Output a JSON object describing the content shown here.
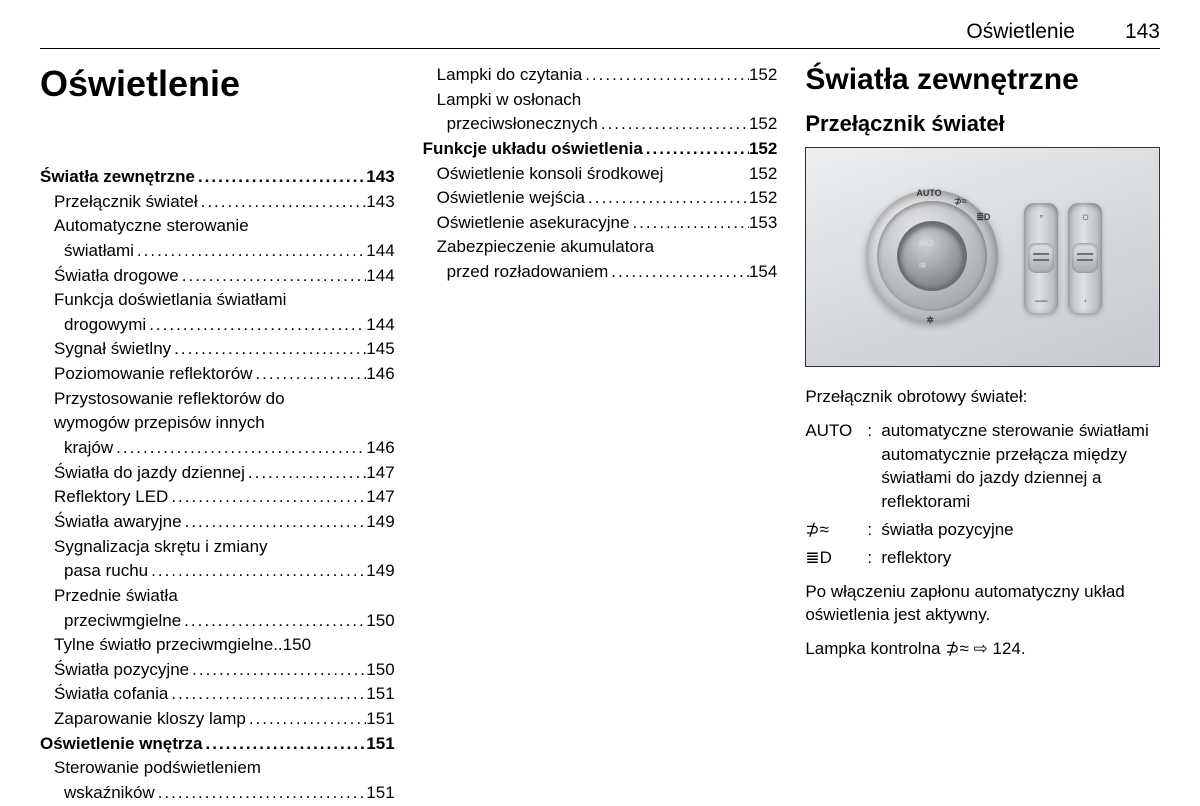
{
  "header": {
    "title": "Oświetlenie",
    "page": "143"
  },
  "col1": {
    "chapter": "Oświetlenie",
    "toc": [
      {
        "type": "section",
        "label": "Światła zewnętrzne",
        "page": "143"
      },
      {
        "type": "item",
        "label": "Przełącznik świateł",
        "page": "143"
      },
      {
        "type": "item-multi",
        "lines": [
          "Automatyczne sterowanie",
          "światłami"
        ],
        "page": "144"
      },
      {
        "type": "item",
        "label": "Światła drogowe",
        "page": "144"
      },
      {
        "type": "item-multi",
        "lines": [
          "Funkcja doświetlania światłami",
          "drogowymi"
        ],
        "page": "144"
      },
      {
        "type": "item",
        "label": "Sygnał świetlny",
        "page": "145"
      },
      {
        "type": "item",
        "label": "Poziomowanie reflektorów",
        "page": "146"
      },
      {
        "type": "item-multi",
        "lines": [
          "Przystosowanie reflektorów do",
          "wymogów przepisów innych",
          "krajów"
        ],
        "page": "146"
      },
      {
        "type": "item",
        "label": "Światła do jazdy dziennej",
        "page": "147"
      },
      {
        "type": "item",
        "label": "Reflektory LED",
        "page": "147"
      },
      {
        "type": "item",
        "label": "Światła awaryjne",
        "page": "149"
      },
      {
        "type": "item-multi",
        "lines": [
          "Sygnalizacja skrętu i zmiany",
          "pasa ruchu"
        ],
        "page": "149"
      },
      {
        "type": "item-multi",
        "lines": [
          "Przednie światła",
          "przeciwmgielne"
        ],
        "page": "150"
      },
      {
        "type": "item",
        "label": "Tylne światło przeciwmgielne",
        "page": "150",
        "tight": true
      },
      {
        "type": "item",
        "label": "Światła pozycyjne",
        "page": "150"
      },
      {
        "type": "item",
        "label": "Światła cofania",
        "page": "151"
      },
      {
        "type": "item",
        "label": "Zaparowanie kloszy lamp",
        "page": "151"
      },
      {
        "type": "section",
        "label": "Oświetlenie wnętrza",
        "page": "151"
      },
      {
        "type": "item-multi",
        "lines": [
          "Sterowanie podświetleniem",
          "wskaźników"
        ],
        "page": "151"
      }
    ]
  },
  "col2": {
    "toc": [
      {
        "type": "item",
        "label": "Lampki do czytania",
        "page": "152"
      },
      {
        "type": "item-multi",
        "lines": [
          "Lampki w osłonach",
          "przeciwsłonecznych"
        ],
        "page": "152"
      },
      {
        "type": "section",
        "label": "Funkcje układu oświetlenia",
        "page": "152"
      },
      {
        "type": "item",
        "label": "Oświetlenie konsoli środkowej",
        "page": "152",
        "nodots": true
      },
      {
        "type": "item",
        "label": "Oświetlenie wejścia",
        "page": "152"
      },
      {
        "type": "item",
        "label": "Oświetlenie asekuracyjne",
        "page": "153"
      },
      {
        "type": "item-multi",
        "lines": [
          "Zabezpieczenie akumulatora",
          "przed rozładowaniem"
        ],
        "page": "154"
      }
    ]
  },
  "col3": {
    "h1": "Światła zewnętrzne",
    "h2": "Przełącznik świateł",
    "dial_labels": {
      "top": "AUTO",
      "right1": "⊅≈",
      "right2": "≣D",
      "inner1": "≋O",
      "inner2": "⫶≋",
      "bottom": "✲"
    },
    "intro": "Przełącznik obrotowy świateł:",
    "defs": [
      {
        "term": "AUTO",
        "desc": "automatyczne sterowanie światłami automatycznie przełącza między światłami do jazdy dziennej a reflektorami"
      },
      {
        "term": "⊅≈",
        "desc": "światła pozycyjne"
      },
      {
        "term": "≣D",
        "desc": "reflektory"
      }
    ],
    "para1": "Po włączeniu zapłonu automatyczny układ oświetlenia jest aktywny.",
    "para2_pre": "Lampka kontrolna ",
    "para2_sym": "⊅≈",
    "para2_post": " ⇨ 124."
  }
}
